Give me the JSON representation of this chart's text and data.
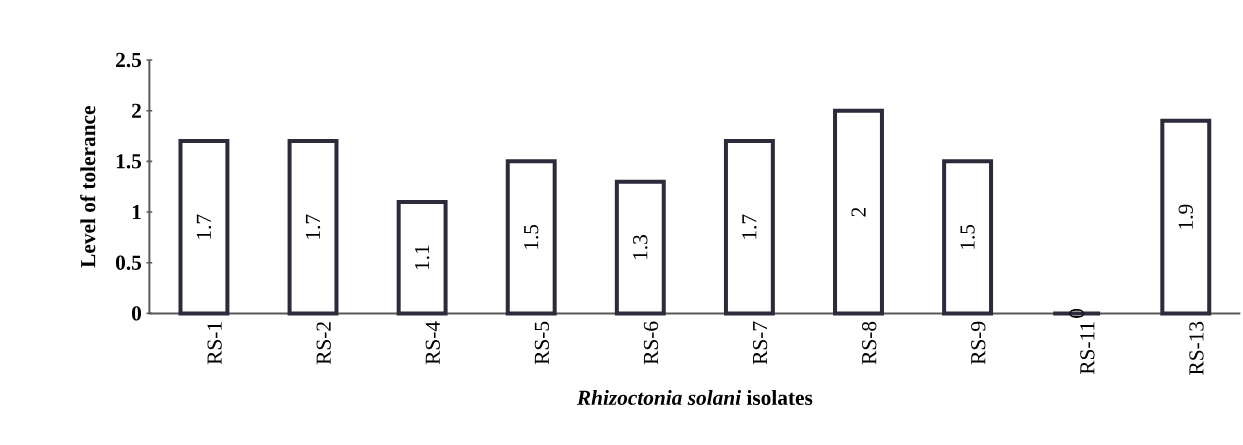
{
  "chart_data": {
    "type": "bar",
    "categories": [
      "RS-1",
      "RS-2",
      "RS-4",
      "RS-5",
      "RS-6",
      "RS-7",
      "RS-8",
      "RS-9",
      "RS-11",
      "RS-13"
    ],
    "values": [
      1.7,
      1.7,
      1.1,
      1.5,
      1.3,
      1.7,
      2,
      1.5,
      0,
      1.9
    ],
    "color": "#2b2b3b",
    "ylim": [
      0,
      2.5
    ],
    "yticks": [
      0,
      0.5,
      1,
      1.5,
      2,
      2.5
    ],
    "ylabel": "Level of tolerance",
    "xlabel": "*Rhizoctonia solani* isolates",
    "data_labels": true,
    "grid": false
  }
}
